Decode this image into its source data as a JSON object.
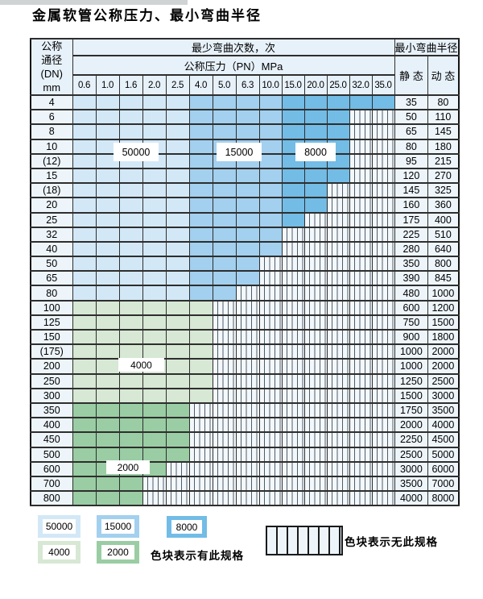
{
  "title": "金属软管公称压力、最小弯曲半径",
  "table": {
    "header": {
      "dn_lines": [
        "公称",
        "通径",
        "(DN)",
        "mm"
      ],
      "cycles": "最少弯曲次数，次",
      "radius": "最小弯曲半径",
      "pressure": "公称压力（PN）MPa",
      "static_label": "静 态",
      "dynamic_label": "动 态",
      "pressure_values": [
        "0.6",
        "1.0",
        "1.6",
        "2.0",
        "2.5",
        "4.0",
        "5.0",
        "6.3",
        "10.0",
        "15.0",
        "20.0",
        "25.0",
        "32.0",
        "35.0"
      ]
    },
    "rows": [
      {
        "dn": "4",
        "group": "blue",
        "last": 13,
        "static": "35",
        "dynamic": "80"
      },
      {
        "dn": "6",
        "group": "blue",
        "last": 11,
        "static": "50",
        "dynamic": "110"
      },
      {
        "dn": "8",
        "group": "blue",
        "last": 11,
        "static": "65",
        "dynamic": "145"
      },
      {
        "dn": "10",
        "group": "blue",
        "last": 11,
        "static": "80",
        "dynamic": "180"
      },
      {
        "dn": "(12)",
        "group": "blue",
        "last": 11,
        "static": "95",
        "dynamic": "215"
      },
      {
        "dn": "15",
        "group": "blue",
        "last": 11,
        "static": "120",
        "dynamic": "270"
      },
      {
        "dn": "(18)",
        "group": "blue",
        "last": 10,
        "static": "145",
        "dynamic": "325"
      },
      {
        "dn": "20",
        "group": "blue",
        "last": 10,
        "static": "160",
        "dynamic": "360"
      },
      {
        "dn": "25",
        "group": "blue",
        "last": 9,
        "static": "175",
        "dynamic": "400"
      },
      {
        "dn": "32",
        "group": "blue",
        "last": 8,
        "static": "225",
        "dynamic": "510"
      },
      {
        "dn": "40",
        "group": "blue",
        "last": 8,
        "static": "280",
        "dynamic": "640"
      },
      {
        "dn": "50",
        "group": "blue",
        "last": 7,
        "static": "350",
        "dynamic": "800"
      },
      {
        "dn": "65",
        "group": "blue",
        "last": 7,
        "static": "390",
        "dynamic": "845"
      },
      {
        "dn": "80",
        "group": "blue",
        "last": 6,
        "static": "480",
        "dynamic": "1000"
      },
      {
        "dn": "100",
        "group": "g4",
        "last": 5,
        "static": "600",
        "dynamic": "1200"
      },
      {
        "dn": "125",
        "group": "g4",
        "last": 5,
        "static": "750",
        "dynamic": "1500"
      },
      {
        "dn": "150",
        "group": "g4",
        "last": 5,
        "static": "900",
        "dynamic": "1800"
      },
      {
        "dn": "(175)",
        "group": "g4",
        "last": 5,
        "static": "1000",
        "dynamic": "2000"
      },
      {
        "dn": "200",
        "group": "g4",
        "last": 5,
        "static": "1000",
        "dynamic": "2000"
      },
      {
        "dn": "250",
        "group": "g4",
        "last": 5,
        "static": "1250",
        "dynamic": "2500"
      },
      {
        "dn": "300",
        "group": "g4",
        "last": 5,
        "static": "1500",
        "dynamic": "3000"
      },
      {
        "dn": "350",
        "group": "g2",
        "last": 4,
        "static": "1750",
        "dynamic": "3500"
      },
      {
        "dn": "400",
        "group": "g2",
        "last": 4,
        "static": "2000",
        "dynamic": "4000"
      },
      {
        "dn": "450",
        "group": "g2",
        "last": 4,
        "static": "2250",
        "dynamic": "4500"
      },
      {
        "dn": "500",
        "group": "g2",
        "last": 4,
        "static": "2500",
        "dynamic": "5000"
      },
      {
        "dn": "600",
        "group": "g2",
        "last": 3,
        "static": "3000",
        "dynamic": "6000"
      },
      {
        "dn": "700",
        "group": "g2",
        "last": 2,
        "static": "3500",
        "dynamic": "7000"
      },
      {
        "dn": "800",
        "group": "g2",
        "last": 2,
        "static": "4000",
        "dynamic": "8000"
      }
    ],
    "shade_rule": {
      "blue_50000_cols": [
        "0.6",
        "1.0",
        "1.6",
        "2.0",
        "2.5"
      ],
      "blue_15000_cols": [
        "4.0",
        "5.0",
        "6.3",
        "10.0"
      ],
      "blue_8000_cols": [
        "15.0",
        "20.0",
        "25.0",
        "32.0",
        "35.0"
      ],
      "g4_cycles": "4000",
      "g2_cycles": "2000",
      "hatch_meaning": "无此规格"
    }
  },
  "cycle_labels": {
    "l50000": "50000",
    "l15000": "15000",
    "l8000": "8000",
    "l4000": "4000",
    "l2000": "2000"
  },
  "legend": {
    "l50000": "50000",
    "l15000": "15000",
    "l8000": "8000",
    "l4000": "4000",
    "l2000": "2000",
    "has_spec": "色块表示有此规格",
    "no_spec": "色块表示无此规格"
  },
  "colors": {
    "c50000": "#d3e8f7",
    "c15000": "#a3d0ee",
    "c8000": "#72bce6",
    "c4000": "#d7e8d4",
    "c2000": "#9acda3",
    "header_bg": "#e7f1fa",
    "label_cell_bg": "#edf5fb",
    "hatch_line": "#505c66"
  }
}
